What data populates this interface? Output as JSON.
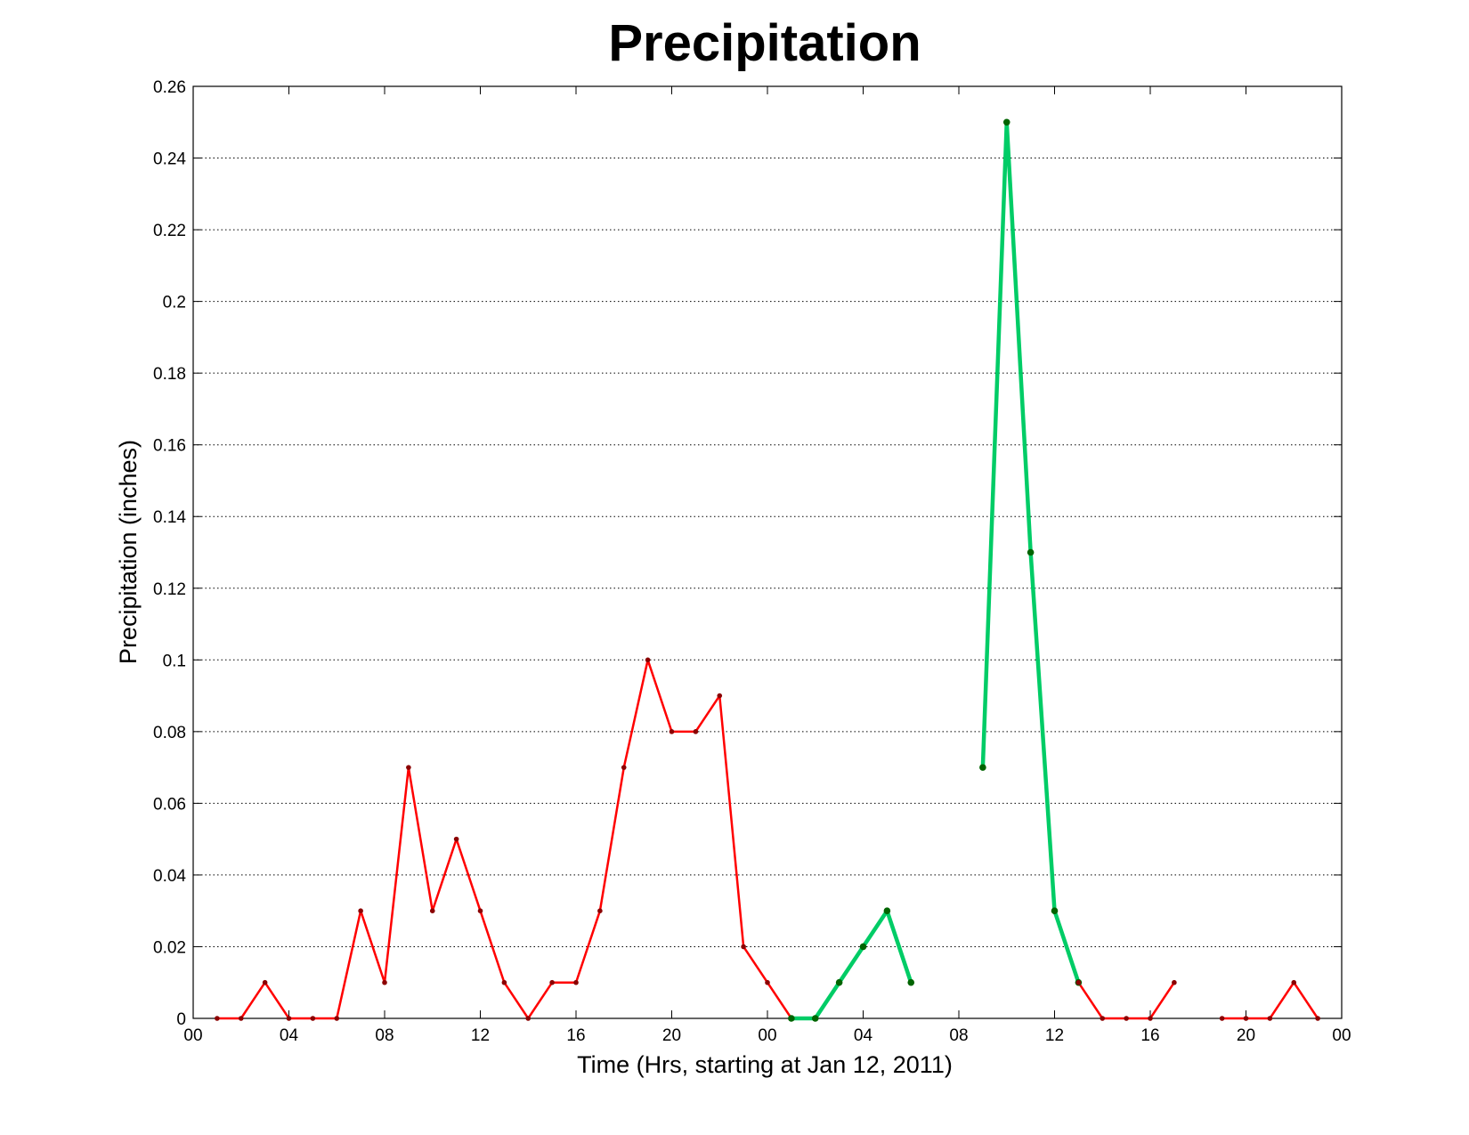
{
  "chart_data": {
    "type": "line",
    "title": "Precipitation",
    "xlabel": "Time (Hrs, starting at Jan 12, 2011)",
    "ylabel": "Precipitation (inches)",
    "xlim": [
      0,
      48
    ],
    "ylim": [
      0,
      0.26
    ],
    "x_ticks": [
      0,
      4,
      8,
      12,
      16,
      20,
      24,
      28,
      32,
      36,
      40,
      44,
      48
    ],
    "x_tick_labels": [
      "00",
      "04",
      "08",
      "12",
      "16",
      "20",
      "00",
      "04",
      "08",
      "12",
      "16",
      "20",
      "00"
    ],
    "y_ticks": [
      0,
      0.02,
      0.04,
      0.06,
      0.08,
      0.1,
      0.12,
      0.14,
      0.16,
      0.18,
      0.2,
      0.22,
      0.24,
      0.26
    ],
    "y_tick_labels": [
      "0",
      "0.02",
      "0.04",
      "0.06",
      "0.08",
      "0.1",
      "0.12",
      "0.14",
      "0.16",
      "0.18",
      "0.2",
      "0.22",
      "0.24",
      "0.26"
    ],
    "grid": "horizontal dotted",
    "colors": {
      "red": "#ff0000",
      "green": "#00cc66",
      "marker_red": "#8b0000",
      "marker_green": "#006400"
    },
    "segments": [
      {
        "color": "red",
        "x": [
          1,
          2,
          3,
          4,
          5,
          6,
          7,
          8,
          9,
          10,
          11,
          12,
          13,
          14,
          15,
          16,
          17,
          18,
          19,
          20,
          21,
          22,
          23,
          24,
          25
        ],
        "y": [
          0,
          0,
          0.01,
          0,
          0,
          0,
          0.03,
          0.01,
          0.07,
          0.03,
          0.05,
          0.03,
          0.01,
          0,
          0.01,
          0.01,
          0.03,
          0.07,
          0.1,
          0.08,
          0.08,
          0.09,
          0.02,
          0.01,
          0
        ]
      },
      {
        "color": "green",
        "x": [
          25,
          26,
          27,
          28,
          29,
          30
        ],
        "y": [
          0,
          0,
          0.01,
          0.02,
          0.03,
          0.01
        ]
      },
      {
        "color": "green",
        "x": [
          33,
          34,
          35,
          36,
          37
        ],
        "y": [
          0.07,
          0.25,
          0.13,
          0.03,
          0.01
        ]
      },
      {
        "color": "red",
        "x": [
          37,
          38,
          39,
          40,
          41
        ],
        "y": [
          0.01,
          0,
          0,
          0,
          0.01
        ]
      },
      {
        "color": "red",
        "x": [
          43,
          44,
          45,
          46,
          47
        ],
        "y": [
          0,
          0,
          0,
          0.01,
          0
        ]
      }
    ]
  }
}
